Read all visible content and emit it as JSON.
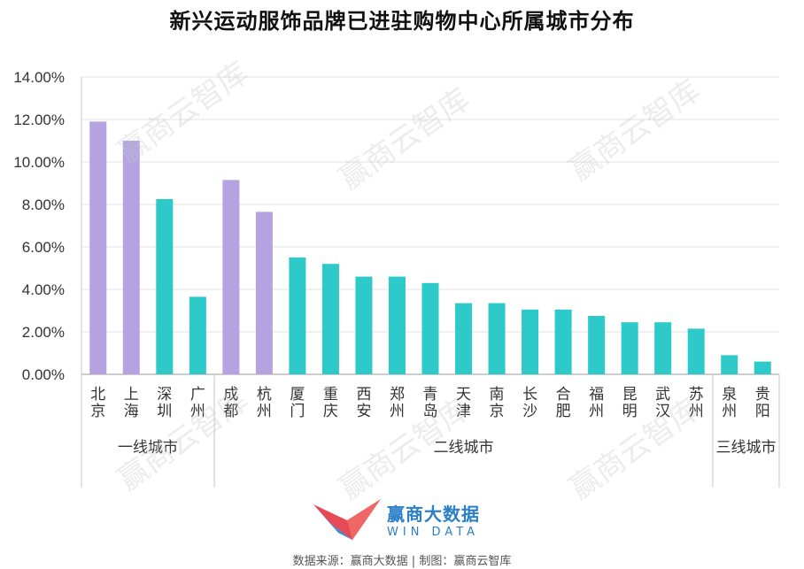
{
  "title": "新兴运动服饰品牌已进驻购物中心所属城市分布",
  "watermark": "赢商云智库",
  "brand": {
    "cn": "赢商大数据",
    "en": "WIN DATA"
  },
  "source": "数据来源：赢商大数据 | 制图：赢商云智库",
  "colors": {
    "purple": "#b4a3e0",
    "teal": "#2ec9c9",
    "grid": "#e2e2e2",
    "axis": "#c8c8c8"
  },
  "chart_data": {
    "type": "bar",
    "categories": [
      "北京",
      "上海",
      "深圳",
      "广州",
      "成都",
      "杭州",
      "厦门",
      "重庆",
      "西安",
      "郑州",
      "青岛",
      "天津",
      "南京",
      "长沙",
      "合肥",
      "福州",
      "昆明",
      "武汉",
      "苏州",
      "泉州",
      "贵阳"
    ],
    "values": [
      11.9,
      11.0,
      8.25,
      3.65,
      9.15,
      7.65,
      5.5,
      5.2,
      4.6,
      4.6,
      4.3,
      3.35,
      3.35,
      3.05,
      3.05,
      2.75,
      2.45,
      2.45,
      2.15,
      0.9,
      0.6
    ],
    "bar_colors": [
      "purple",
      "purple",
      "teal",
      "teal",
      "purple",
      "purple",
      "teal",
      "teal",
      "teal",
      "teal",
      "teal",
      "teal",
      "teal",
      "teal",
      "teal",
      "teal",
      "teal",
      "teal",
      "teal",
      "teal",
      "teal"
    ],
    "groups": [
      {
        "label": "一线城市",
        "count": 4
      },
      {
        "label": "二线城市",
        "count": 15
      },
      {
        "label": "三线城市",
        "count": 2
      }
    ],
    "yticks": [
      "0.00%",
      "2.00%",
      "4.00%",
      "6.00%",
      "8.00%",
      "10.00%",
      "12.00%",
      "14.00%"
    ],
    "ylim": [
      0,
      14
    ],
    "grid": true,
    "xlabel": "",
    "ylabel": ""
  }
}
